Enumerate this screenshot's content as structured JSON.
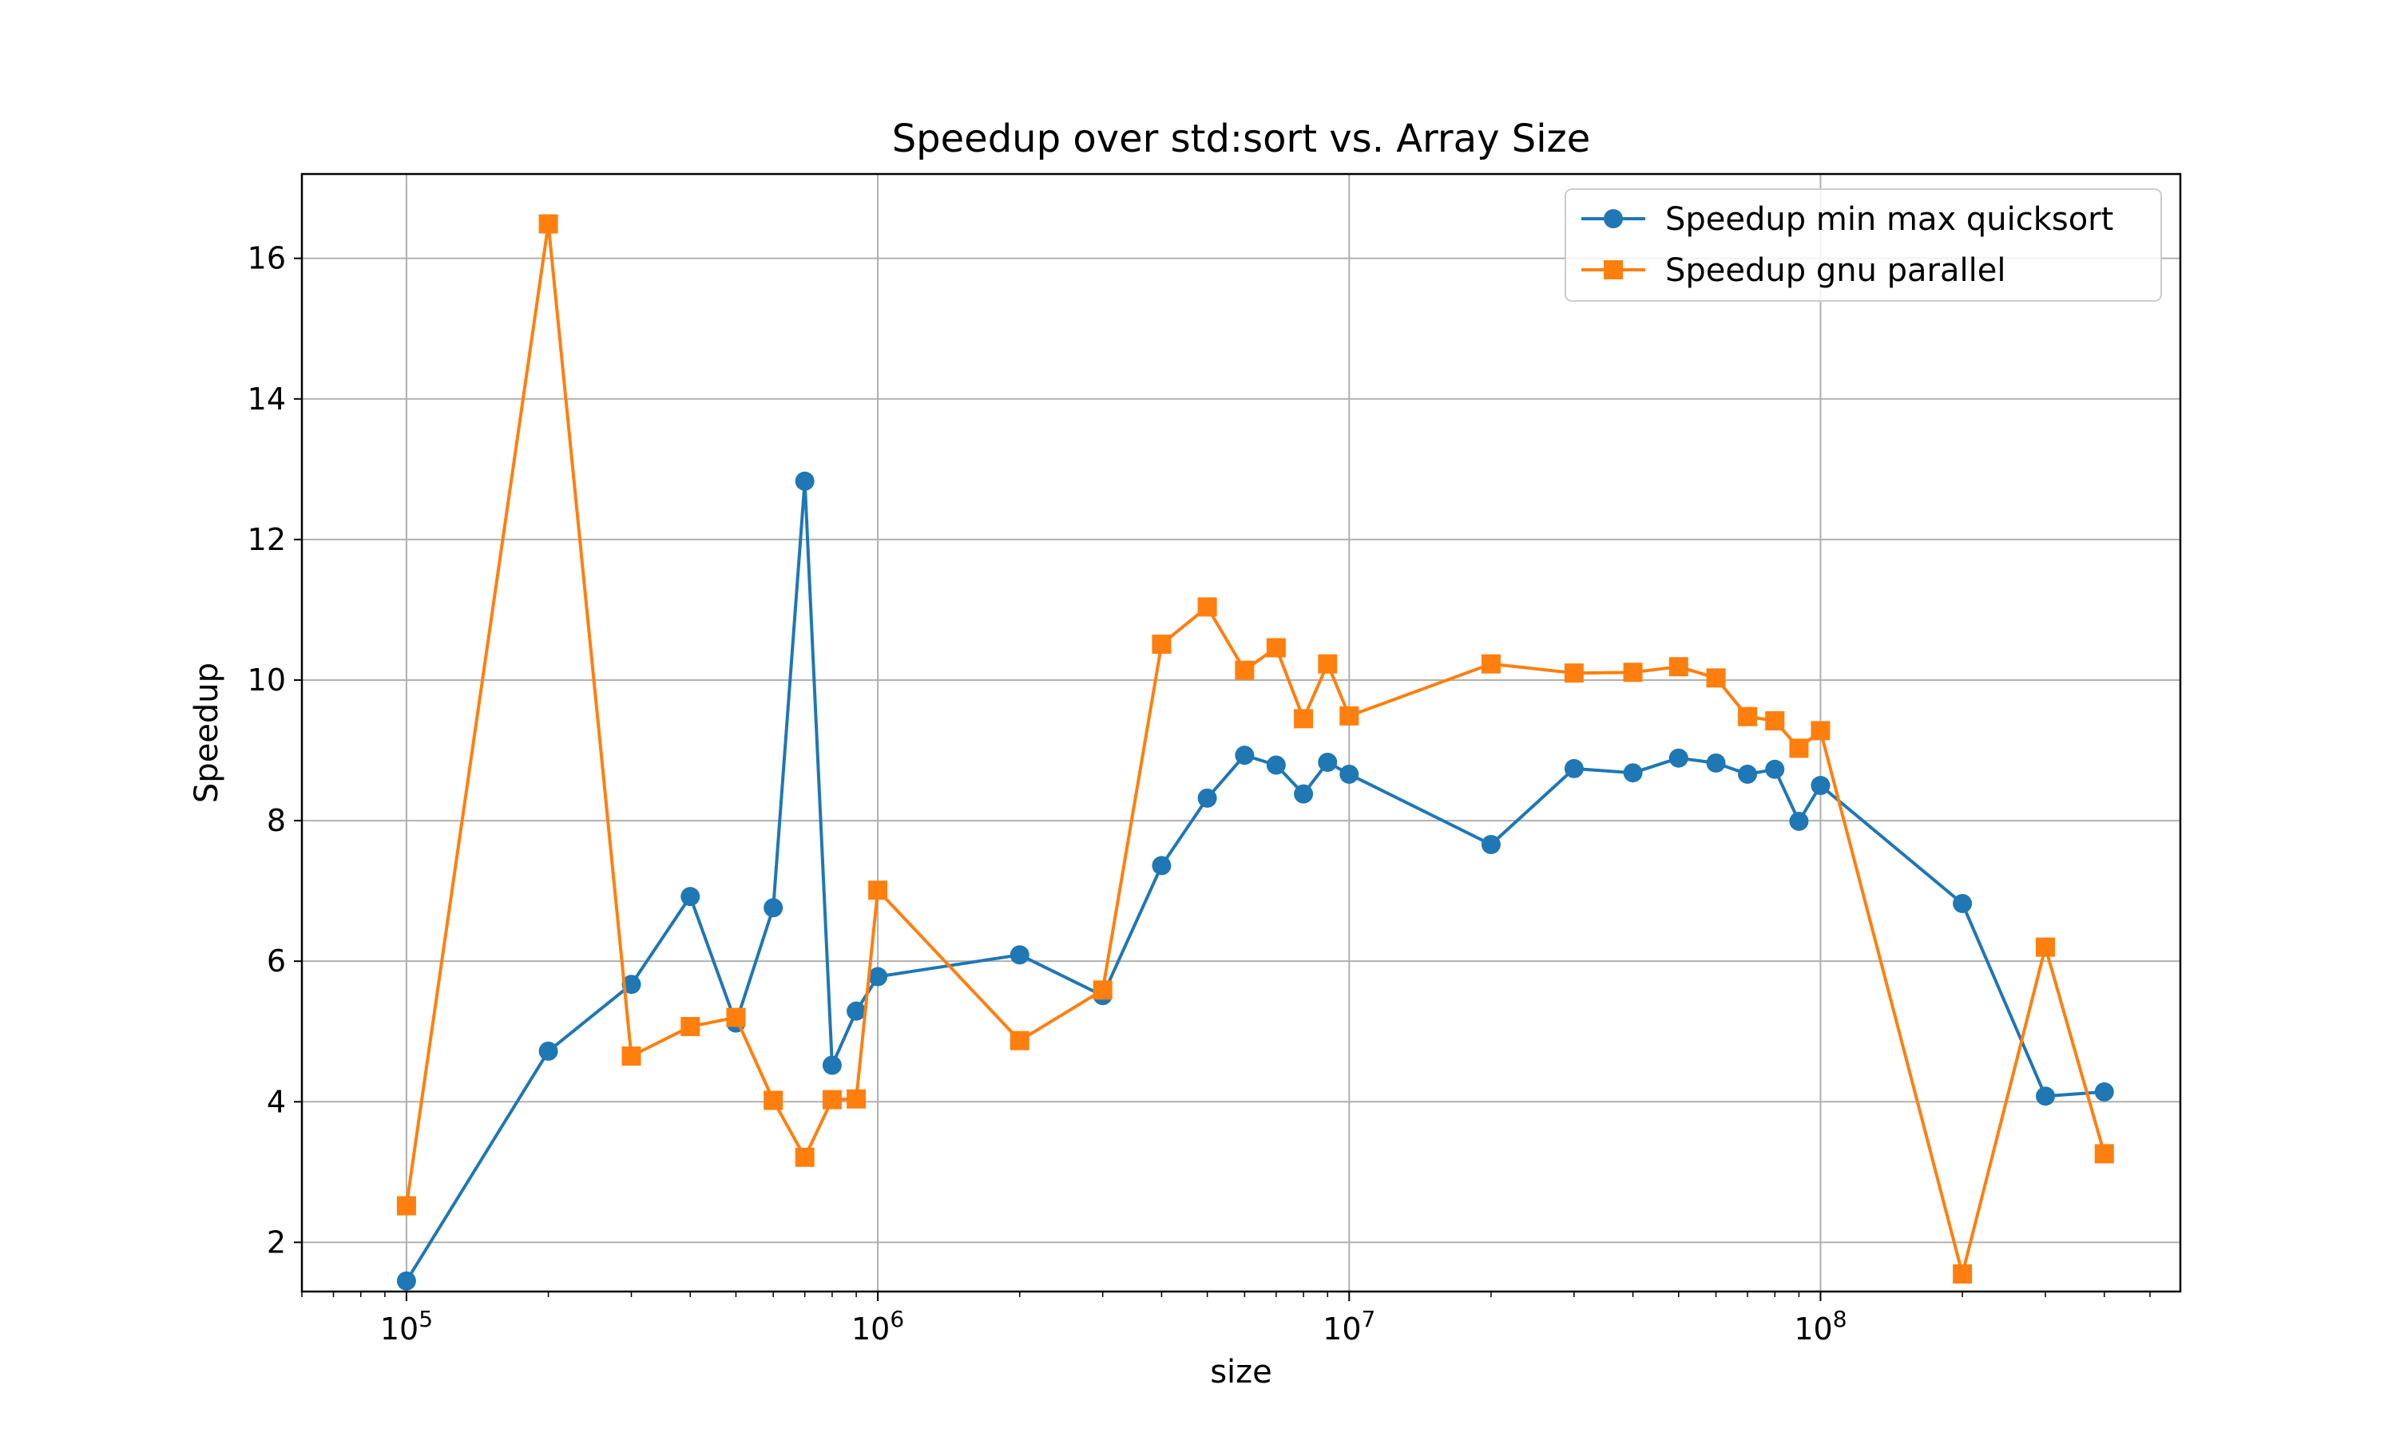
{
  "chart_data": {
    "type": "line",
    "title": "Speedup over std:sort vs. Array Size",
    "xlabel": "size",
    "ylabel": "Speedup",
    "xscale": "log",
    "xlim": [
      60000,
      580000000
    ],
    "ylim": [
      1.3,
      17.2
    ],
    "yticks": [
      2,
      4,
      6,
      8,
      10,
      12,
      14,
      16
    ],
    "xticks": [
      {
        "base": "10",
        "exp": "5",
        "value": 100000
      },
      {
        "base": "10",
        "exp": "6",
        "value": 1000000
      },
      {
        "base": "10",
        "exp": "7",
        "value": 10000000
      },
      {
        "base": "10",
        "exp": "8",
        "value": 100000000
      }
    ],
    "grid": true,
    "legend_position": "top-right",
    "x": [
      100000,
      200000,
      300000,
      400000,
      500000,
      600000,
      700000,
      800000,
      900000,
      1000000,
      2000000,
      3000000,
      4000000,
      5000000,
      6000000,
      7000000,
      8000000,
      9000000,
      10000000,
      20000000,
      30000000,
      40000000,
      50000000,
      60000000,
      70000000,
      80000000,
      90000000,
      100000000,
      200000000,
      300000000,
      400000000
    ],
    "series": [
      {
        "name": "Speedup min max quicksort",
        "color": "#1f77b4",
        "marker": "circle",
        "values": [
          1.45,
          4.72,
          5.67,
          6.92,
          5.12,
          6.76,
          12.83,
          4.52,
          5.29,
          5.78,
          6.09,
          5.51,
          7.36,
          8.32,
          8.93,
          8.79,
          8.38,
          8.83,
          8.66,
          7.66,
          8.74,
          8.68,
          8.89,
          8.82,
          8.66,
          8.73,
          7.99,
          8.5,
          6.82,
          4.08,
          4.14
        ]
      },
      {
        "name": "Speedup gnu parallel",
        "color": "#ff7f0e",
        "marker": "square",
        "values": [
          2.52,
          16.49,
          4.65,
          5.07,
          5.2,
          4.02,
          3.21,
          4.03,
          4.04,
          7.01,
          4.87,
          5.59,
          10.51,
          11.04,
          10.14,
          10.46,
          9.45,
          10.23,
          9.49,
          10.23,
          10.1,
          10.11,
          10.19,
          10.03,
          9.48,
          9.42,
          9.03,
          9.28,
          1.55,
          6.2,
          3.26
        ]
      }
    ]
  }
}
